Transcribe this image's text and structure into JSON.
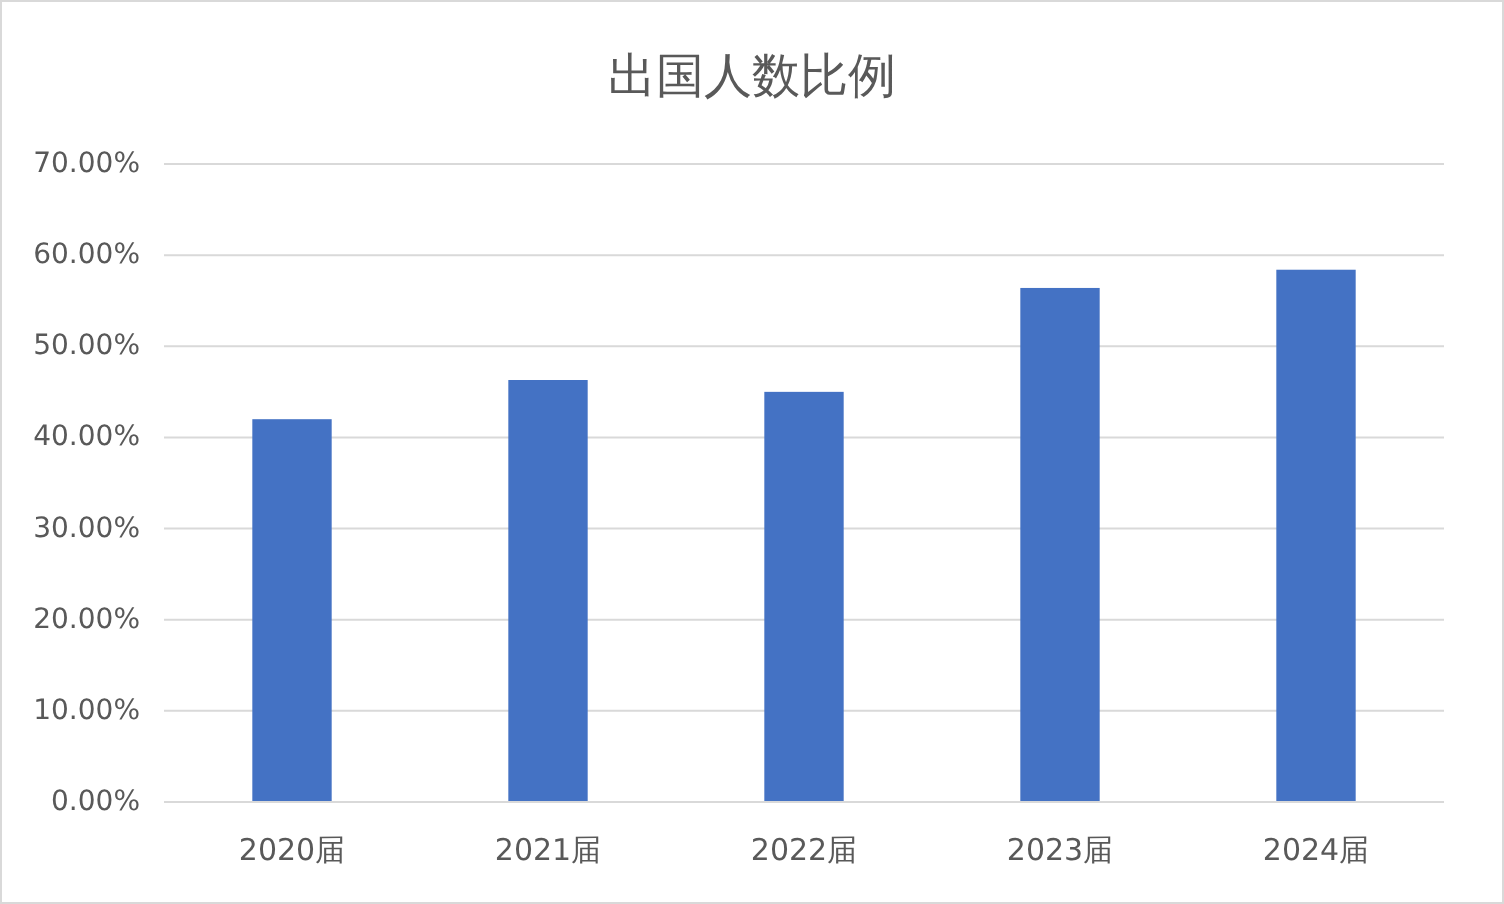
{
  "chart_data": {
    "type": "bar",
    "title": "出国人数比例",
    "categories": [
      "2020届",
      "2021届",
      "2022届",
      "2023届",
      "2024届"
    ],
    "values": [
      42.0,
      46.3,
      45.0,
      56.4,
      58.4
    ],
    "color": "#4472c4",
    "ylim": [
      0,
      70
    ],
    "yticks": [
      {
        "value": 0,
        "label": "0.00%"
      },
      {
        "value": 10,
        "label": "10.00%"
      },
      {
        "value": 20,
        "label": "20.00%"
      },
      {
        "value": 30,
        "label": "30.00%"
      },
      {
        "value": 40,
        "label": "40.00%"
      },
      {
        "value": 50,
        "label": "50.00%"
      },
      {
        "value": 60,
        "label": "60.00%"
      },
      {
        "value": 70,
        "label": "70.00%"
      }
    ],
    "grid": "y"
  }
}
